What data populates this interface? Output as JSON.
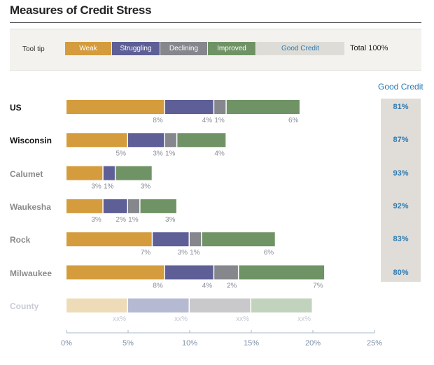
{
  "title": "Measures of Credit Stress",
  "legend": {
    "label": "Tool tip",
    "total": "Total 100%",
    "items": [
      {
        "label": "Weak",
        "color": "#d49c3d",
        "text_color": "#ffffff"
      },
      {
        "label": "Struggling",
        "color": "#5d5f96",
        "text_color": "#ffffff"
      },
      {
        "label": "Declining",
        "color": "#85878d",
        "text_color": "#ffffff"
      },
      {
        "label": "Improved",
        "color": "#6f9365",
        "text_color": "#ffffff"
      },
      {
        "label": "Good Credit",
        "color": "#dedcd7",
        "text_color": "#2c7ab0"
      }
    ]
  },
  "good_credit_header": "Good Credit",
  "chart_data": {
    "type": "bar",
    "orientation": "horizontal",
    "stacked": true,
    "title": "Measures of Credit Stress",
    "series_names": [
      "Weak",
      "Struggling",
      "Declining",
      "Improved"
    ],
    "x_axis": {
      "min": 0,
      "max": 25,
      "ticks": [
        0,
        5,
        10,
        15,
        20,
        25
      ],
      "tick_labels": [
        "0%",
        "5%",
        "10%",
        "15%",
        "20%",
        "25%"
      ]
    },
    "rows": [
      {
        "name": "US",
        "values": [
          8,
          4,
          1,
          6
        ],
        "labels": [
          "8%",
          "4%",
          "1%",
          "6%"
        ],
        "good_credit": "81%",
        "style": "bold"
      },
      {
        "name": "Wisconsin",
        "values": [
          5,
          3,
          1,
          4
        ],
        "labels": [
          "5%",
          "3%",
          "1%",
          "4%"
        ],
        "good_credit": "87%",
        "style": "bold"
      },
      {
        "name": "Calumet",
        "values": [
          3,
          1,
          0,
          3
        ],
        "labels": [
          "3%",
          "1%",
          "",
          "3%"
        ],
        "good_credit": "93%",
        "style": "county"
      },
      {
        "name": "Waukesha",
        "values": [
          3,
          2,
          1,
          3
        ],
        "labels": [
          "3%",
          "2%",
          "1%",
          "3%"
        ],
        "good_credit": "92%",
        "style": "county"
      },
      {
        "name": "Rock",
        "values": [
          7,
          3,
          1,
          6
        ],
        "labels": [
          "7%",
          "3%",
          "1%",
          "6%"
        ],
        "good_credit": "83%",
        "style": "county"
      },
      {
        "name": "Milwaukee",
        "values": [
          8,
          4,
          2,
          7
        ],
        "labels": [
          "8%",
          "4%",
          "2%",
          "7%"
        ],
        "good_credit": "80%",
        "style": "county"
      },
      {
        "name": "County",
        "values": [
          5,
          5,
          5,
          5
        ],
        "labels": [
          "xx%",
          "xx%",
          "xx%",
          "xx%"
        ],
        "good_credit": "",
        "style": "placeholder"
      }
    ]
  }
}
